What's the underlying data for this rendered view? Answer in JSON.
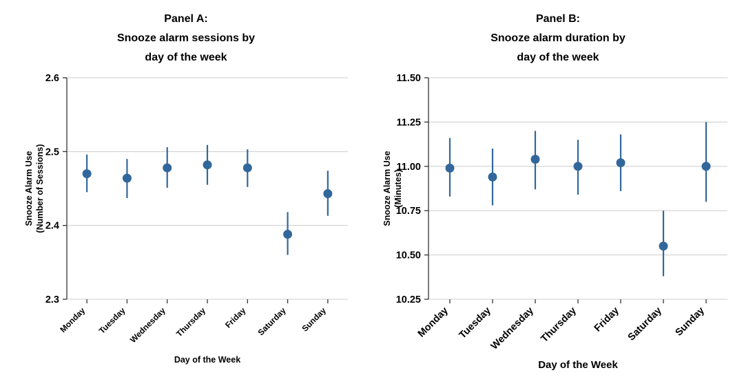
{
  "colors": {
    "background": "#ffffff",
    "grid": "#cccccc",
    "axis": "#333333",
    "text": "#000000",
    "marker": "#32679b"
  },
  "chart_data": [
    {
      "type": "scatter",
      "panel": "A",
      "title_lines": [
        "Panel A:",
        "Snooze alarm sessions by",
        "day of the week"
      ],
      "ylabel_lines": [
        "Snooze Alarm Use",
        "(Number of Sessions)"
      ],
      "xlabel": "Day of the Week",
      "categories": [
        "Monday",
        "Tuesday",
        "Wednesday",
        "Thursday",
        "Friday",
        "Saturday",
        "Sunday"
      ],
      "values": [
        2.47,
        2.464,
        2.478,
        2.482,
        2.478,
        2.388,
        2.443
      ],
      "ci_low": [
        2.445,
        2.437,
        2.451,
        2.455,
        2.452,
        2.36,
        2.413
      ],
      "ci_high": [
        2.496,
        2.49,
        2.506,
        2.509,
        2.503,
        2.418,
        2.474
      ],
      "ylim": [
        2.3,
        2.6
      ],
      "ytick_labels": [
        "2.3",
        "2.4",
        "2.5",
        "2.6"
      ],
      "grid": true,
      "legend": "none",
      "marker_color": "#32679b"
    },
    {
      "type": "scatter",
      "panel": "B",
      "title_lines": [
        "Panel B:",
        "Snooze alarm duration by",
        "day of the week"
      ],
      "ylabel_lines": [
        "Snooze Alarm Use",
        "(Minutes)"
      ],
      "xlabel": "Day of the Week",
      "categories": [
        "Monday",
        "Tuesday",
        "Wednesday",
        "Thursday",
        "Friday",
        "Saturday",
        "Sunday"
      ],
      "values": [
        10.99,
        10.94,
        11.04,
        11.0,
        11.02,
        10.55,
        11.0
      ],
      "ci_low": [
        10.83,
        10.78,
        10.87,
        10.84,
        10.86,
        10.38,
        10.8
      ],
      "ci_high": [
        11.16,
        11.1,
        11.2,
        11.15,
        11.18,
        10.75,
        11.25
      ],
      "ylim": [
        10.25,
        11.5
      ],
      "ytick_labels": [
        "10.25",
        "10.50",
        "10.75",
        "11.00",
        "11.25",
        "11.50"
      ],
      "grid": true,
      "legend": "none",
      "marker_color": "#32679b"
    }
  ]
}
